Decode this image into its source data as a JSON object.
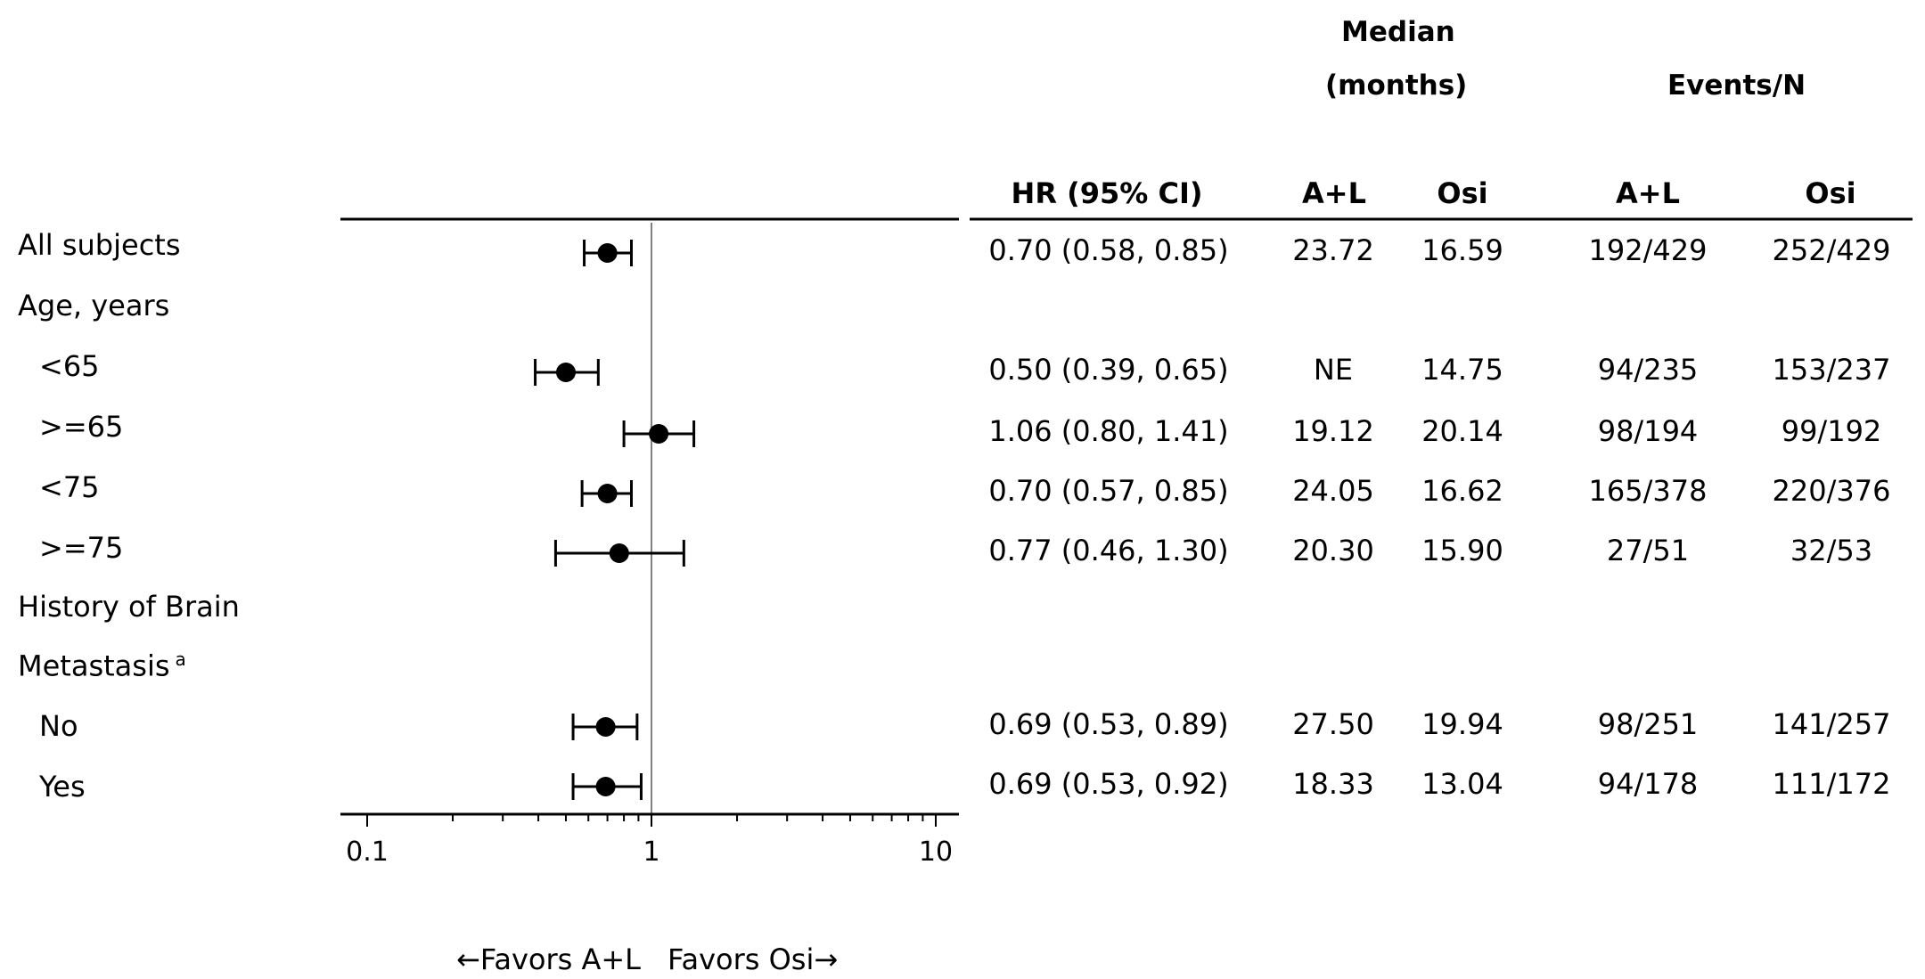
{
  "header": {
    "median_line1": "Median",
    "median_line2": "(months)",
    "events": "Events/N",
    "hr": "HR (95% CI)",
    "median_al": "A+L",
    "median_osi": "Osi",
    "events_al": "A+L",
    "events_osi": "Osi"
  },
  "labels": [
    {
      "text": "All subjects"
    },
    {
      "text": "Age, years"
    },
    {
      "text": "<65"
    },
    {
      "text": ">=65"
    },
    {
      "text": "<75"
    },
    {
      "text": ">=75"
    },
    {
      "text": "History of Brain"
    },
    {
      "text": "Metastasis",
      "sup": "a"
    },
    {
      "text": "No"
    },
    {
      "text": "Yes"
    }
  ],
  "chart_data": {
    "type": "forest",
    "x_scale": "log",
    "xlim": [
      0.1,
      10
    ],
    "x_ticks": [
      "0.1",
      "1",
      "10"
    ],
    "reference_line": 1,
    "xlabel_left": "←Favors A+L",
    "xlabel_right": "Favors Osi→",
    "rows": [
      {
        "label": "All subjects",
        "hr": 0.7,
        "lo": 0.58,
        "hi": 0.85,
        "hr_text": "0.70 (0.58, 0.85)",
        "median_al": "23.72",
        "median_osi": "16.59",
        "events_al": "192/429",
        "events_osi": "252/429"
      },
      {
        "label": "<65",
        "hr": 0.5,
        "lo": 0.39,
        "hi": 0.65,
        "hr_text": "0.50 (0.39, 0.65)",
        "median_al": "NE",
        "median_osi": "14.75",
        "events_al": "94/235",
        "events_osi": "153/237"
      },
      {
        "label": ">=65",
        "hr": 1.06,
        "lo": 0.8,
        "hi": 1.41,
        "hr_text": "1.06 (0.80, 1.41)",
        "median_al": "19.12",
        "median_osi": "20.14",
        "events_al": "98/194",
        "events_osi": "99/192"
      },
      {
        "label": "<75",
        "hr": 0.7,
        "lo": 0.57,
        "hi": 0.85,
        "hr_text": "0.70 (0.57, 0.85)",
        "median_al": "24.05",
        "median_osi": "16.62",
        "events_al": "165/378",
        "events_osi": "220/376"
      },
      {
        "label": ">=75",
        "hr": 0.77,
        "lo": 0.46,
        "hi": 1.3,
        "hr_text": "0.77 (0.46, 1.30)",
        "median_al": "20.30",
        "median_osi": "15.90",
        "events_al": "27/51",
        "events_osi": "32/53"
      },
      {
        "label": "No",
        "hr": 0.69,
        "lo": 0.53,
        "hi": 0.89,
        "hr_text": "0.69 (0.53, 0.89)",
        "median_al": "27.50",
        "median_osi": "19.94",
        "events_al": "98/251",
        "events_osi": "141/257"
      },
      {
        "label": "Yes",
        "hr": 0.69,
        "lo": 0.53,
        "hi": 0.92,
        "hr_text": "0.69 (0.53, 0.92)",
        "median_al": "18.33",
        "median_osi": "13.04",
        "events_al": "94/178",
        "events_osi": "111/172"
      }
    ],
    "colors": {
      "marker": "#000000",
      "reference_line": "#808080"
    }
  }
}
